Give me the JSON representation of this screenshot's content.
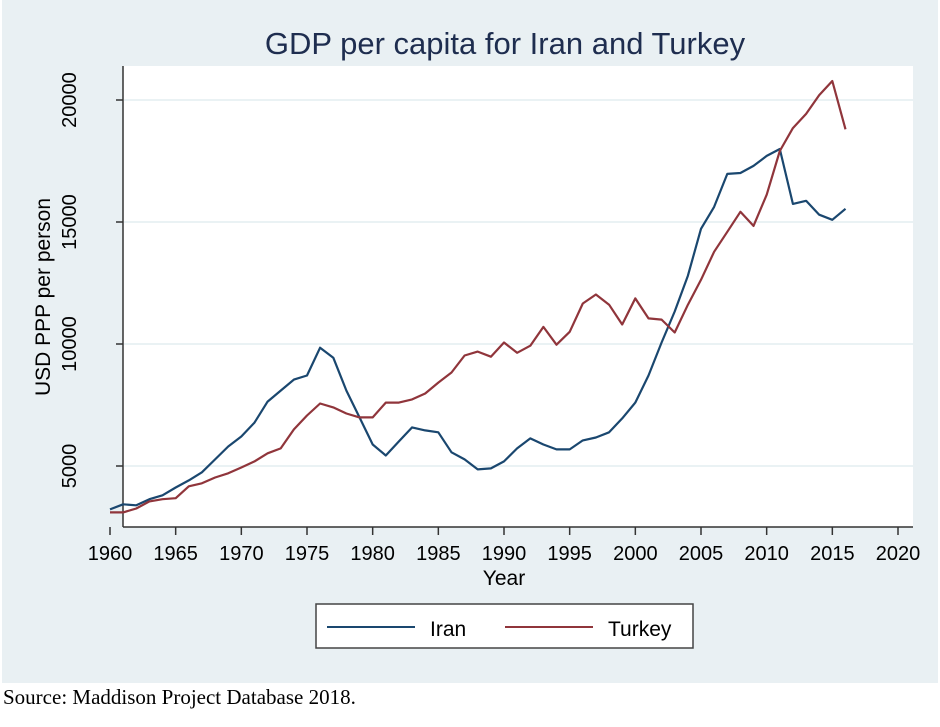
{
  "chart_data": {
    "type": "line",
    "title": "GDP per capita for Iran and Turkey",
    "xlabel": "Year",
    "ylabel": "USD PPP per person",
    "xlim": [
      1960,
      2020
    ],
    "ylim": [
      2800,
      21400
    ],
    "x_ticks": [
      1960,
      1965,
      1970,
      1975,
      1980,
      1985,
      1990,
      1995,
      2000,
      2005,
      2010,
      2015,
      2020
    ],
    "x_tick_labels": [
      "1960",
      "1965",
      "1970",
      "1975",
      "1980",
      "1985",
      "1990",
      "1995",
      "2000",
      "2005",
      "2010",
      "2015",
      "2020"
    ],
    "y_ticks": [
      5000,
      10000,
      15000,
      20000
    ],
    "y_tick_labels": [
      "5000",
      "10000",
      "15000",
      "20000"
    ],
    "grid": "horizontal",
    "legend": {
      "position": "bottom",
      "entries": [
        "Iran",
        "Turkey"
      ]
    },
    "x": [
      1960,
      1961,
      1962,
      1963,
      1964,
      1965,
      1966,
      1967,
      1968,
      1969,
      1970,
      1971,
      1972,
      1973,
      1974,
      1975,
      1976,
      1977,
      1978,
      1979,
      1980,
      1981,
      1982,
      1983,
      1984,
      1985,
      1986,
      1987,
      1988,
      1989,
      1990,
      1991,
      1992,
      1993,
      1994,
      1995,
      1996,
      1997,
      1998,
      1999,
      2000,
      2001,
      2002,
      2003,
      2004,
      2005,
      2006,
      2007,
      2008,
      2009,
      2010,
      2011,
      2012,
      2013,
      2014,
      2015,
      2016
    ],
    "series": [
      {
        "name": "Iran",
        "color": "#1a476f",
        "values": [
          3220,
          3430,
          3390,
          3640,
          3800,
          4120,
          4410,
          4740,
          5270,
          5800,
          6210,
          6780,
          7640,
          8090,
          8540,
          8710,
          9850,
          9440,
          8090,
          6990,
          5880,
          5430,
          6010,
          6580,
          6460,
          6380,
          5560,
          5270,
          4860,
          4900,
          5190,
          5720,
          6130,
          5880,
          5680,
          5680,
          6050,
          6170,
          6380,
          6950,
          7600,
          8710,
          10060,
          11330,
          12800,
          14720,
          15620,
          16970,
          17010,
          17300,
          17710,
          17990,
          15740,
          15870,
          15300,
          15090,
          15540
        ]
      },
      {
        "name": "Turkey",
        "color": "#90353b",
        "values": [
          3100,
          3100,
          3260,
          3550,
          3640,
          3680,
          4170,
          4290,
          4530,
          4700,
          4940,
          5190,
          5520,
          5720,
          6500,
          7070,
          7560,
          7400,
          7150,
          6990,
          6990,
          7600,
          7600,
          7730,
          7970,
          8420,
          8830,
          9530,
          9690,
          9480,
          10060,
          9640,
          9930,
          10700,
          9970,
          10500,
          11660,
          12030,
          11610,
          10800,
          11870,
          11050,
          11000,
          10470,
          11610,
          12630,
          13780,
          14600,
          15420,
          14840,
          16120,
          17910,
          18850,
          19430,
          20200,
          20780,
          18800
        ]
      }
    ]
  },
  "source_note": "Source: Maddison Project Database 2018."
}
